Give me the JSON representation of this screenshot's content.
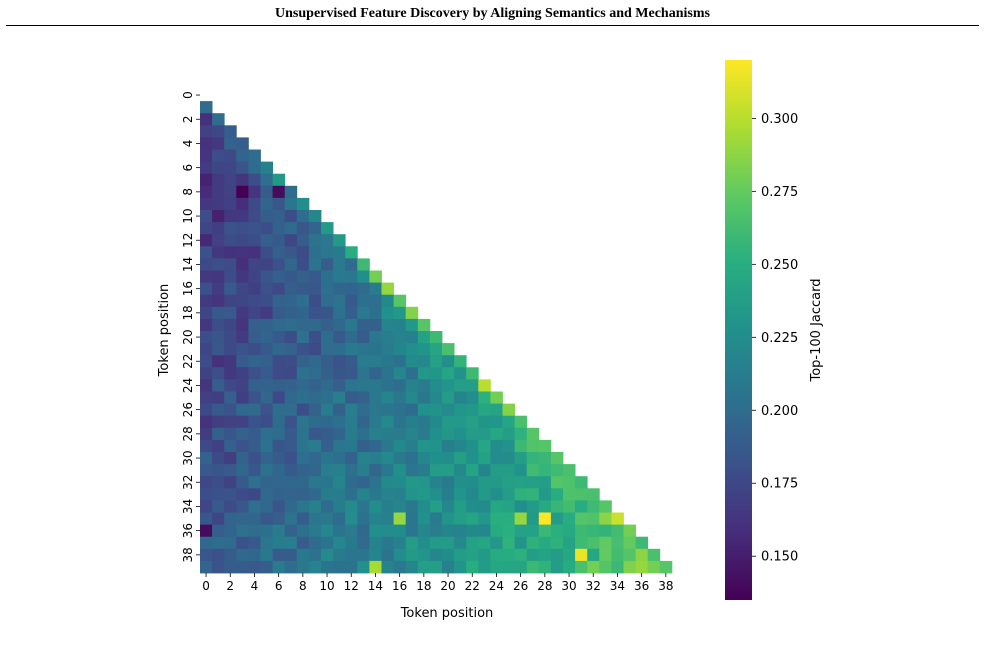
{
  "page": {
    "running_header": "Unsupervised Feature Discovery by Aligning Semantics and Mechanisms"
  },
  "chart_data": {
    "type": "heatmap",
    "title": "",
    "xlabel": "Token position",
    "ylabel": "Token position",
    "colorbar_label": "Top-100 Jaccard",
    "colormap": "viridis",
    "vmin": 0.135,
    "vmax": 0.32,
    "colorbar_ticks": [
      "0.150",
      "0.175",
      "0.200",
      "0.225",
      "0.250",
      "0.275",
      "0.300"
    ],
    "colorbar_tick_values": [
      0.15,
      0.175,
      0.2,
      0.225,
      0.25,
      0.275,
      0.3
    ],
    "x_ticks": [
      0,
      2,
      4,
      6,
      8,
      10,
      12,
      14,
      16,
      18,
      20,
      22,
      24,
      26,
      28,
      30,
      32,
      34,
      36,
      38
    ],
    "y_ticks": [
      0,
      2,
      4,
      6,
      8,
      10,
      12,
      14,
      16,
      18,
      20,
      22,
      24,
      26,
      28,
      30,
      32,
      34,
      36,
      38
    ],
    "n_positions": 40,
    "mask": "lower-triangular (cells with column index >= row index are blank)",
    "diagonal_adjacent": [
      0.2,
      0.2,
      0.19,
      0.19,
      0.2,
      0.215,
      0.235,
      0.2,
      0.225,
      0.22,
      0.235,
      0.235,
      0.25,
      0.26,
      0.28,
      0.29,
      0.27,
      0.285,
      0.27,
      0.26,
      0.265,
      0.255,
      0.26,
      0.3,
      0.28,
      0.285,
      0.265,
      0.27,
      0.27,
      0.27,
      0.265,
      0.26,
      0.265,
      0.27,
      0.305,
      0.28,
      0.26,
      0.265,
      0.27
    ],
    "highlights": [
      {
        "row": 35,
        "col": 28,
        "value": 0.32
      },
      {
        "row": 38,
        "col": 31,
        "value": 0.315
      },
      {
        "row": 35,
        "col": 34,
        "value": 0.305
      },
      {
        "row": 35,
        "col": 16,
        "value": 0.29
      },
      {
        "row": 35,
        "col": 26,
        "value": 0.29
      },
      {
        "row": 39,
        "col": 14,
        "value": 0.295
      },
      {
        "row": 39,
        "col": 32,
        "value": 0.28
      },
      {
        "row": 8,
        "col": 3,
        "value": 0.135
      },
      {
        "row": 8,
        "col": 6,
        "value": 0.14
      },
      {
        "row": 36,
        "col": 0,
        "value": 0.14
      }
    ]
  }
}
